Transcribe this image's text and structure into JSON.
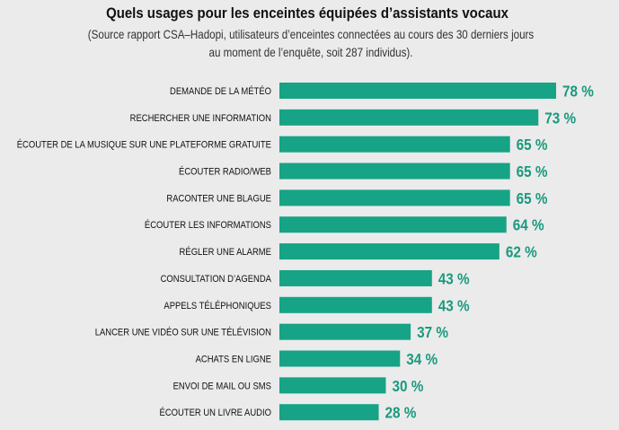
{
  "chart_data": {
    "type": "bar",
    "orientation": "horizontal",
    "title": "Quels usages pour les enceintes équipées d’assistants vocaux",
    "subtitle": [
      "(Source rapport CSA–Hadopi, utilisateurs d’enceintes connectées au cours des 30 derniers jours",
      "au moment de l’enquête, soit 287 individus)."
    ],
    "categories": [
      "DEMANDE DE LA MÉTÉO",
      "RECHERCHER UNE INFORMATION",
      "ÉCOUTER DE LA MUSIQUE SUR UNE PLATEFORME GRATUITE",
      "ÉCOUTER RADIO/WEB",
      "RACONTER UNE BLAGUE",
      "ÉCOUTER LES INFORMATIONS",
      "RÉGLER UNE ALARME",
      "CONSULTATION D’AGENDA",
      "APPELS TÉLÉPHONIQUES",
      "LANCER UNE VIDÉO SUR UNE TÉLÉVISION",
      "ACHATS EN LIGNE",
      "ENVOI DE MAIL OU SMS",
      "ÉCOUTER UN LIVRE AUDIO"
    ],
    "values": [
      78,
      73,
      65,
      65,
      65,
      64,
      62,
      43,
      43,
      37,
      34,
      30,
      28
    ],
    "value_labels": [
      "78 %",
      "73 %",
      "65 %",
      "65 %",
      "65 %",
      "64 %",
      "62 %",
      "43 %",
      "43 %",
      "37 %",
      "34 %",
      "30 %",
      "28 %"
    ],
    "unit": "%",
    "xlim": [
      0,
      100
    ],
    "grid": false,
    "colors": {
      "bar": "#17a385",
      "value_text": "#1a9a7e",
      "background": "#ebebeb"
    }
  }
}
